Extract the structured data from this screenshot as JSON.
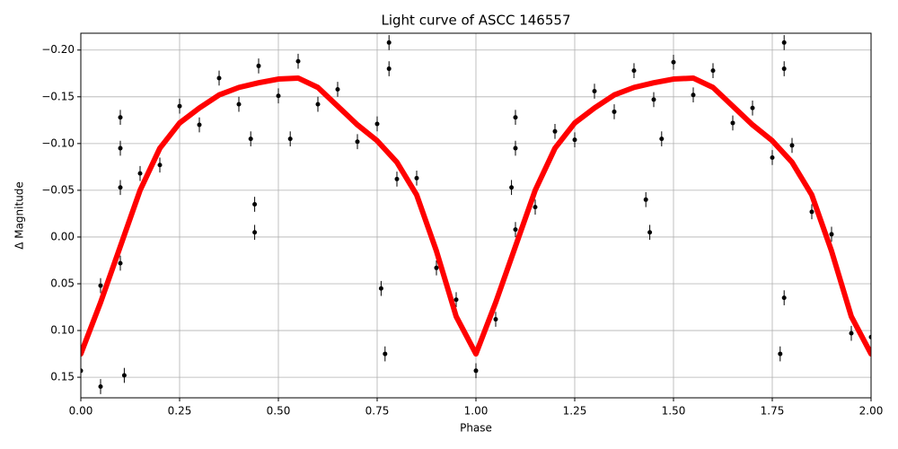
{
  "chart_data": {
    "type": "scatter",
    "title": "Light curve of ASCC 146557",
    "x_label": "Phase",
    "y_label": "Δ Magnitude",
    "xlim": [
      0,
      2
    ],
    "ylim": [
      -0.218,
      0.172
    ],
    "y_inverted": true,
    "grid": true,
    "xticks": [
      {
        "value": 0,
        "label": "0.00"
      },
      {
        "value": 0.25,
        "label": "0.25"
      },
      {
        "value": 0.5,
        "label": "0.50"
      },
      {
        "value": 0.75,
        "label": "0.75"
      },
      {
        "value": 1,
        "label": "1.00"
      },
      {
        "value": 1.25,
        "label": "1.25"
      },
      {
        "value": 1.5,
        "label": "1.50"
      },
      {
        "value": 1.75,
        "label": "1.75"
      },
      {
        "value": 2,
        "label": "2.00"
      }
    ],
    "yticks": [
      {
        "value": -0.2,
        "label": "−0.20"
      },
      {
        "value": -0.15,
        "label": "−0.15"
      },
      {
        "value": -0.1,
        "label": "−0.10"
      },
      {
        "value": -0.05,
        "label": "−0.05"
      },
      {
        "value": 0,
        "label": "0.00"
      },
      {
        "value": 0.05,
        "label": "0.05"
      },
      {
        "value": 0.1,
        "label": "0.10"
      },
      {
        "value": 0.15,
        "label": "0.15"
      }
    ],
    "series": [
      {
        "kind": "points",
        "color": "#000000",
        "error": 0.008,
        "x": [
          0,
          0.05,
          0.1,
          0.15,
          0.2,
          0.25,
          0.3,
          0.35,
          0.4,
          0.45,
          0.5,
          0.55,
          0.6,
          0.65,
          0.7,
          0.75,
          0.8,
          0.85,
          0.9,
          0.95,
          1,
          1.05,
          1.1,
          1.15,
          1.2,
          1.25,
          1.3,
          1.35,
          1.4,
          1.45,
          1.5,
          1.55,
          1.6,
          1.65,
          1.7,
          1.75,
          1.8,
          1.85,
          1.9,
          1.95,
          2,
          0.1,
          0.1,
          0.1,
          0.44,
          0.44,
          0.43,
          0.53,
          0.78,
          0.78,
          0.77,
          0.76,
          0.11,
          0.05,
          1.1,
          1.1,
          1.09,
          1.44,
          1.43,
          1.47,
          1.78,
          1.78,
          1.77,
          1.78
        ],
        "values": [
          0.143,
          0.052,
          0.028,
          -0.068,
          -0.077,
          -0.14,
          -0.12,
          -0.17,
          -0.142,
          -0.183,
          -0.151,
          -0.188,
          -0.142,
          -0.158,
          -0.102,
          -0.121,
          -0.062,
          -0.063,
          0.033,
          0.067,
          0.143,
          0.088,
          -0.008,
          -0.032,
          -0.113,
          -0.104,
          -0.156,
          -0.134,
          -0.178,
          -0.147,
          -0.187,
          -0.152,
          -0.178,
          -0.122,
          -0.138,
          -0.085,
          -0.098,
          -0.027,
          -0.003,
          0.103,
          0.107,
          -0.128,
          -0.095,
          -0.053,
          -0.005,
          -0.035,
          -0.105,
          -0.105,
          -0.208,
          -0.18,
          0.125,
          0.055,
          0.148,
          0.16,
          -0.128,
          -0.095,
          -0.053,
          -0.005,
          -0.04,
          -0.105,
          -0.208,
          -0.18,
          0.125,
          0.065
        ]
      },
      {
        "kind": "line",
        "color": "#ff0000",
        "x": [
          0,
          0.05,
          0.1,
          0.15,
          0.2,
          0.25,
          0.3,
          0.35,
          0.4,
          0.45,
          0.5,
          0.55,
          0.6,
          0.65,
          0.7,
          0.75,
          0.8,
          0.85,
          0.9,
          0.95,
          1,
          1.05,
          1.1,
          1.15,
          1.2,
          1.25,
          1.3,
          1.35,
          1.4,
          1.45,
          1.5,
          1.55,
          1.6,
          1.65,
          1.7,
          1.75,
          1.8,
          1.85,
          1.9,
          1.95,
          2
        ],
        "values": [
          0.125,
          0.07,
          0.01,
          -0.05,
          -0.095,
          -0.122,
          -0.138,
          -0.152,
          -0.16,
          -0.165,
          -0.169,
          -0.17,
          -0.16,
          -0.14,
          -0.12,
          -0.103,
          -0.08,
          -0.045,
          0.015,
          0.085,
          0.125,
          0.07,
          0.01,
          -0.05,
          -0.095,
          -0.122,
          -0.138,
          -0.152,
          -0.16,
          -0.165,
          -0.169,
          -0.17,
          -0.16,
          -0.14,
          -0.12,
          -0.103,
          -0.08,
          -0.045,
          0.015,
          0.085,
          0.125
        ]
      }
    ]
  }
}
